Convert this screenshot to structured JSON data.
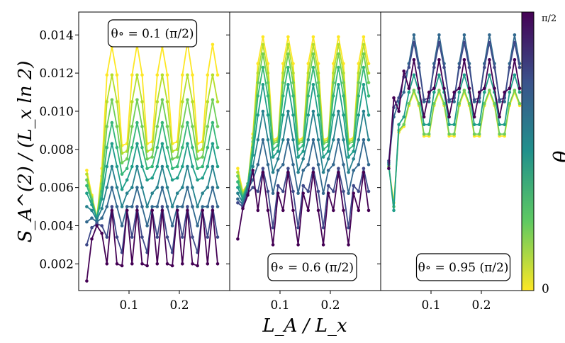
{
  "chart_data": {
    "type": "line",
    "title": "",
    "xlabel": "L_A / L_x",
    "ylabel": "S_A^(2) / (L_x ln 2)",
    "x_tick_labels": [
      "0.1",
      "0.2"
    ],
    "x_ticks": [
      0.1,
      0.2
    ],
    "y_tick_labels": [
      "0.002",
      "0.004",
      "0.006",
      "0.008",
      "0.010",
      "0.012",
      "0.014"
    ],
    "y_ticks": [
      0.002,
      0.004,
      0.006,
      0.008,
      0.01,
      0.012,
      0.014
    ],
    "xlim": [
      0.0,
      0.3
    ],
    "ylim": [
      0.0006,
      0.0152
    ],
    "x": [
      0.016,
      0.026,
      0.036,
      0.046,
      0.056,
      0.066,
      0.076,
      0.086,
      0.096,
      0.106,
      0.116,
      0.126,
      0.136,
      0.146,
      0.156,
      0.166,
      0.176,
      0.186,
      0.196,
      0.206,
      0.216,
      0.226,
      0.236,
      0.246,
      0.256,
      0.266,
      0.276
    ],
    "colorbar": {
      "label": "θ",
      "tick_labels": [
        "0",
        "π/2"
      ],
      "colors": [
        "#fde725",
        "#5ec962",
        "#21918c",
        "#3b528b",
        "#440154"
      ]
    },
    "panels": [
      {
        "annotation_prefix": "θ∘ = 0.1",
        "annotation_suffix": "(π/2)",
        "series": [
          {
            "name": "θ=0.00",
            "color": "#fde725",
            "values": [
              0.0069,
              0.0056,
              0.0044,
              0.007,
              0.0119,
              0.0134,
              0.0119,
              0.0082,
              0.0083,
              0.0119,
              0.0135,
              0.0119,
              0.0083,
              0.0084,
              0.0119,
              0.0134,
              0.0119,
              0.0083,
              0.0084,
              0.0119,
              0.0136,
              0.0119,
              0.0083,
              0.0084,
              0.0119,
              0.0135,
              0.0119
            ]
          },
          {
            "name": "θ=0.13",
            "color": "#b5de2b",
            "values": [
              0.0067,
              0.0055,
              0.0044,
              0.0066,
              0.0105,
              0.0119,
              0.0105,
              0.0078,
              0.0079,
              0.0105,
              0.0119,
              0.0105,
              0.0079,
              0.008,
              0.0105,
              0.0119,
              0.0105,
              0.0079,
              0.008,
              0.0105,
              0.0119,
              0.0105,
              0.0079,
              0.008,
              0.0105,
              0.0119,
              0.0105
            ]
          },
          {
            "name": "θ=0.25",
            "color": "#6ece58",
            "values": [
              0.0064,
              0.0054,
              0.0044,
              0.0062,
              0.0092,
              0.0106,
              0.0092,
              0.0073,
              0.0075,
              0.0092,
              0.0106,
              0.0092,
              0.0075,
              0.0076,
              0.0092,
              0.0106,
              0.0092,
              0.0075,
              0.0076,
              0.0092,
              0.0106,
              0.0092,
              0.0075,
              0.0076,
              0.0092,
              0.0106,
              0.0092
            ]
          },
          {
            "name": "θ=0.38",
            "color": "#35b779",
            "values": [
              0.0061,
              0.0053,
              0.0044,
              0.0058,
              0.0081,
              0.0094,
              0.0081,
              0.0067,
              0.007,
              0.0081,
              0.0094,
              0.0081,
              0.007,
              0.0071,
              0.0081,
              0.0094,
              0.0081,
              0.007,
              0.0071,
              0.0081,
              0.0094,
              0.0081,
              0.007,
              0.0071,
              0.0081,
              0.0094,
              0.0081
            ]
          },
          {
            "name": "θ=0.50",
            "color": "#1f9e89",
            "values": [
              0.0057,
              0.0051,
              0.0044,
              0.0054,
              0.0071,
              0.0083,
              0.0071,
              0.0059,
              0.0064,
              0.0071,
              0.0083,
              0.0071,
              0.0064,
              0.0065,
              0.0071,
              0.0083,
              0.0071,
              0.0064,
              0.0065,
              0.0071,
              0.0083,
              0.0071,
              0.0064,
              0.0065,
              0.0071,
              0.0083,
              0.0071
            ]
          },
          {
            "name": "θ=0.63",
            "color": "#26828e",
            "values": [
              0.005,
              0.0048,
              0.0043,
              0.0049,
              0.006,
              0.0071,
              0.006,
              0.005,
              0.0057,
              0.006,
              0.0071,
              0.006,
              0.005,
              0.0057,
              0.006,
              0.0071,
              0.006,
              0.005,
              0.0057,
              0.006,
              0.0071,
              0.006,
              0.005,
              0.0057,
              0.006,
              0.0071,
              0.006
            ]
          },
          {
            "name": "θ=0.75",
            "color": "#31688e",
            "values": [
              0.0042,
              0.0044,
              0.0042,
              0.0044,
              0.005,
              0.006,
              0.005,
              0.004,
              0.005,
              0.005,
              0.006,
              0.005,
              0.004,
              0.005,
              0.005,
              0.006,
              0.005,
              0.004,
              0.005,
              0.005,
              0.006,
              0.005,
              0.004,
              0.005,
              0.005,
              0.006,
              0.005
            ]
          },
          {
            "name": "θ=0.88",
            "color": "#3e4989",
            "values": [
              0.003,
              0.0039,
              0.0041,
              0.004,
              0.0034,
              0.005,
              0.0034,
              0.0026,
              0.0048,
              0.0034,
              0.005,
              0.0034,
              0.0026,
              0.0048,
              0.0034,
              0.005,
              0.0034,
              0.0026,
              0.0048,
              0.0034,
              0.005,
              0.0034,
              0.0026,
              0.0048,
              0.0034,
              0.005,
              0.0034
            ]
          },
          {
            "name": "θ=1.00",
            "color": "#440154",
            "values": [
              0.0011,
              0.0033,
              0.004,
              0.0036,
              0.002,
              0.0048,
              0.002,
              0.0019,
              0.0048,
              0.002,
              0.0048,
              0.002,
              0.0019,
              0.0048,
              0.002,
              0.0048,
              0.002,
              0.0019,
              0.0048,
              0.002,
              0.0048,
              0.002,
              0.0019,
              0.0048,
              0.002,
              0.0048,
              0.002
            ]
          }
        ]
      },
      {
        "annotation_prefix": "θ∘ = 0.6",
        "annotation_suffix": "(π/2)",
        "series": [
          {
            "name": "θ=0.00",
            "color": "#fde725",
            "values": [
              0.007,
              0.0058,
              0.0062,
              0.0088,
              0.0125,
              0.0139,
              0.0125,
              0.0085,
              0.0086,
              0.0125,
              0.0139,
              0.0125,
              0.0085,
              0.0086,
              0.0125,
              0.0139,
              0.0125,
              0.0085,
              0.0086,
              0.0125,
              0.0139,
              0.0125,
              0.0085,
              0.0086,
              0.0125,
              0.0139,
              0.0125
            ]
          },
          {
            "name": "θ=0.13",
            "color": "#b5de2b",
            "values": [
              0.0068,
              0.0057,
              0.0062,
              0.0086,
              0.012,
              0.0135,
              0.012,
              0.0084,
              0.0085,
              0.012,
              0.0135,
              0.012,
              0.0084,
              0.0085,
              0.012,
              0.0135,
              0.012,
              0.0084,
              0.0085,
              0.012,
              0.0135,
              0.012,
              0.0084,
              0.0085,
              0.012,
              0.0135,
              0.012
            ]
          },
          {
            "name": "θ=0.25",
            "color": "#6ece58",
            "values": [
              0.0066,
              0.0056,
              0.0062,
              0.0084,
              0.0115,
              0.013,
              0.0115,
              0.0083,
              0.0084,
              0.0115,
              0.013,
              0.0115,
              0.0083,
              0.0084,
              0.0115,
              0.013,
              0.0115,
              0.0083,
              0.0084,
              0.0115,
              0.013,
              0.0115,
              0.0083,
              0.0084,
              0.0115,
              0.013,
              0.0115
            ]
          },
          {
            "name": "θ=0.38",
            "color": "#35b779",
            "values": [
              0.0063,
              0.0055,
              0.0062,
              0.0081,
              0.0108,
              0.0123,
              0.0108,
              0.008,
              0.0082,
              0.0108,
              0.0123,
              0.0108,
              0.008,
              0.0082,
              0.0108,
              0.0123,
              0.0108,
              0.008,
              0.0082,
              0.0108,
              0.0123,
              0.0108,
              0.008,
              0.0082,
              0.0108,
              0.0123,
              0.0108
            ]
          },
          {
            "name": "θ=0.50",
            "color": "#1f9e89",
            "values": [
              0.006,
              0.0054,
              0.0061,
              0.0077,
              0.0098,
              0.0114,
              0.0098,
              0.0076,
              0.0079,
              0.0098,
              0.0114,
              0.0098,
              0.0076,
              0.0079,
              0.0098,
              0.0114,
              0.0098,
              0.0076,
              0.0079,
              0.0098,
              0.0114,
              0.0098,
              0.0076,
              0.0079,
              0.0098,
              0.0114,
              0.0098
            ]
          },
          {
            "name": "θ=0.63",
            "color": "#26828e",
            "values": [
              0.0057,
              0.0052,
              0.006,
              0.0071,
              0.0085,
              0.01,
              0.0085,
              0.0068,
              0.0075,
              0.0085,
              0.01,
              0.0085,
              0.0068,
              0.0075,
              0.0085,
              0.01,
              0.0085,
              0.0068,
              0.0075,
              0.0085,
              0.01,
              0.0085,
              0.0068,
              0.0075,
              0.0085,
              0.01,
              0.0085
            ]
          },
          {
            "name": "θ=0.75",
            "color": "#31688e",
            "values": [
              0.0054,
              0.0051,
              0.0059,
              0.0064,
              0.0072,
              0.0085,
              0.0072,
              0.0057,
              0.0069,
              0.0072,
              0.0085,
              0.0072,
              0.0057,
              0.0069,
              0.0072,
              0.0085,
              0.0072,
              0.0057,
              0.0069,
              0.0072,
              0.0085,
              0.0072,
              0.0057,
              0.0069,
              0.0072,
              0.0085,
              0.0072
            ]
          },
          {
            "name": "θ=0.88",
            "color": "#3e4989",
            "values": [
              0.0052,
              0.005,
              0.0057,
              0.006,
              0.0058,
              0.007,
              0.0058,
              0.0039,
              0.0061,
              0.0058,
              0.007,
              0.0058,
              0.0039,
              0.0061,
              0.0058,
              0.007,
              0.0058,
              0.0039,
              0.0061,
              0.0058,
              0.007,
              0.0058,
              0.0039,
              0.0061,
              0.0058,
              0.007,
              0.0058
            ]
          },
          {
            "name": "θ=1.00",
            "color": "#440154",
            "values": [
              0.0033,
              0.0049,
              0.0056,
              0.0069,
              0.0048,
              0.0068,
              0.0048,
              0.003,
              0.0057,
              0.0048,
              0.0068,
              0.0048,
              0.003,
              0.0057,
              0.0048,
              0.0068,
              0.0048,
              0.003,
              0.0057,
              0.0048,
              0.0068,
              0.0048,
              0.003,
              0.0057,
              0.0048,
              0.0068,
              0.0048
            ]
          }
        ]
      },
      {
        "annotation_prefix": "θ∘ = 0.95",
        "annotation_suffix": "(π/2)",
        "series": [
          {
            "name": "θ=0.00",
            "color": "#fde725",
            "values": [
              0.0071,
              0.0052,
              0.0089,
              0.0092,
              0.0103,
              0.011,
              0.0103,
              0.0087,
              0.0087,
              0.0103,
              0.011,
              0.0103,
              0.0087,
              0.0087,
              0.0103,
              0.011,
              0.0103,
              0.0087,
              0.0087,
              0.0103,
              0.011,
              0.0103,
              0.0087,
              0.0087,
              0.0103,
              0.011,
              0.0103
            ]
          },
          {
            "name": "θ=0.25",
            "color": "#6ece58",
            "values": [
              0.0071,
              0.005,
              0.009,
              0.0093,
              0.0104,
              0.0111,
              0.0104,
              0.0088,
              0.0088,
              0.0104,
              0.0111,
              0.0104,
              0.0088,
              0.0088,
              0.0104,
              0.0111,
              0.0104,
              0.0088,
              0.0088,
              0.0104,
              0.0111,
              0.0104,
              0.0088,
              0.0088,
              0.0104,
              0.0111,
              0.0104
            ]
          },
          {
            "name": "θ=0.50",
            "color": "#1f9e89",
            "values": [
              0.0072,
              0.0048,
              0.0093,
              0.0097,
              0.011,
              0.0119,
              0.011,
              0.0093,
              0.0093,
              0.011,
              0.0119,
              0.011,
              0.0093,
              0.0093,
              0.011,
              0.0119,
              0.011,
              0.0093,
              0.0093,
              0.011,
              0.0119,
              0.011,
              0.0093,
              0.0093,
              0.011,
              0.0119,
              0.011
            ]
          },
          {
            "name": "θ=0.75",
            "color": "#31688e",
            "values": [
              0.0073,
              0.0097,
              0.0105,
              0.011,
              0.0125,
              0.014,
              0.0125,
              0.0105,
              0.0105,
              0.0125,
              0.014,
              0.0125,
              0.0105,
              0.0105,
              0.0125,
              0.014,
              0.0125,
              0.0105,
              0.0105,
              0.0125,
              0.014,
              0.0125,
              0.0105,
              0.0105,
              0.0125,
              0.014,
              0.0125
            ]
          },
          {
            "name": "θ=0.88",
            "color": "#3e4989",
            "values": [
              0.0074,
              0.0102,
              0.0107,
              0.0118,
              0.0123,
              0.0136,
              0.0123,
              0.0106,
              0.0107,
              0.0123,
              0.0136,
              0.0123,
              0.0106,
              0.0107,
              0.0123,
              0.0136,
              0.0123,
              0.0106,
              0.0107,
              0.0123,
              0.0136,
              0.0123,
              0.0106,
              0.0107,
              0.0123,
              0.0136,
              0.0123
            ]
          },
          {
            "name": "θ=1.00",
            "color": "#440154",
            "values": [
              0.007,
              0.0107,
              0.01,
              0.0121,
              0.0112,
              0.0127,
              0.0112,
              0.0097,
              0.011,
              0.0112,
              0.0127,
              0.0112,
              0.0097,
              0.011,
              0.0112,
              0.0127,
              0.0112,
              0.0097,
              0.011,
              0.0112,
              0.0127,
              0.0112,
              0.0097,
              0.011,
              0.0112,
              0.0127,
              0.0112
            ]
          }
        ]
      }
    ]
  }
}
